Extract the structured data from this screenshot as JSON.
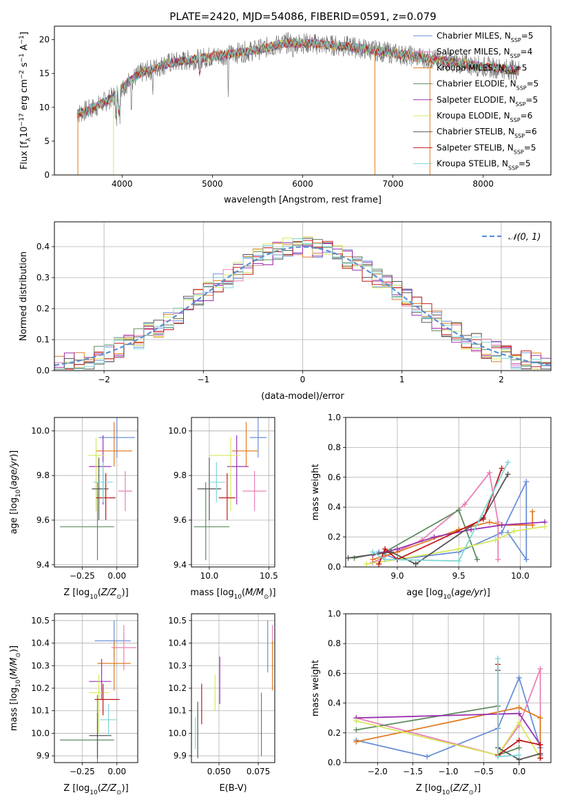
{
  "title": "PLATE=2420, MJD=54086, FIBERID=0591, z=0.079",
  "legend_series": [
    {
      "name": "Chabrier MILES",
      "nssp": "5",
      "color": "#6a8fd8"
    },
    {
      "name": "Salpeter MILES",
      "nssp": "4",
      "color": "#e87fb5"
    },
    {
      "name": "Kroupa MILES",
      "nssp": "5",
      "color": "#e07b20"
    },
    {
      "name": "Chabrier ELODIE",
      "nssp": "5",
      "color": "#5f8a5f"
    },
    {
      "name": "Salpeter ELODIE",
      "nssp": "5",
      "color": "#9b30b0"
    },
    {
      "name": "Kroupa ELODIE",
      "nssp": "6",
      "color": "#d6e85c"
    },
    {
      "name": "Chabrier STELIB",
      "nssp": "6",
      "color": "#555555"
    },
    {
      "name": "Salpeter STELIB",
      "nssp": "5",
      "color": "#c01818"
    },
    {
      "name": "Kroupa STELIB",
      "nssp": "5",
      "color": "#7fd6d6"
    }
  ],
  "chart_data": [
    {
      "id": "spectrum",
      "type": "line",
      "xlabel": "wavelength [Angstrom, rest frame]",
      "ylabel": "Flux [f_λ10^-17 erg cm^-2 s^-1 A^-1]",
      "xlim": [
        3250,
        8750
      ],
      "ylim": [
        0,
        22
      ],
      "xticks": [
        4000,
        5000,
        6000,
        7000,
        8000
      ],
      "yticks": [
        0,
        5,
        10,
        15,
        20
      ],
      "continuum": [
        [
          3500,
          9
        ],
        [
          3700,
          10
        ],
        [
          3900,
          11.5
        ],
        [
          4000,
          13
        ],
        [
          4200,
          15
        ],
        [
          4500,
          16.5
        ],
        [
          5000,
          17.5
        ],
        [
          5500,
          18.5
        ],
        [
          5800,
          19.5
        ],
        [
          6000,
          19.5
        ],
        [
          6500,
          19
        ],
        [
          7000,
          18
        ],
        [
          7500,
          17
        ],
        [
          8000,
          16
        ],
        [
          8400,
          15.5
        ]
      ],
      "data_range": [
        3500,
        8400
      ],
      "grid": false
    },
    {
      "id": "residuals",
      "type": "histogram",
      "xlabel": "(data-model)/error",
      "ylabel": "Normed distribution",
      "xlim": [
        -2.5,
        2.5
      ],
      "ylim": [
        0,
        0.48
      ],
      "xticks": [
        -2,
        -1,
        0,
        1,
        2
      ],
      "yticks": [
        0,
        0.1,
        0.2,
        0.3,
        0.4
      ],
      "bin_width": 0.1,
      "reference_curve": "N(0,1)",
      "reference_color": "#5b8fd6",
      "legend_position": "top-right",
      "grid": true
    },
    {
      "id": "age-vs-Z",
      "type": "errorbar",
      "xlabel": "Z [log10(Z/Z☉)]",
      "ylabel": "age  [log10(age/yr)]",
      "xlim": [
        -0.45,
        0.15
      ],
      "ylim": [
        9.39,
        10.06
      ],
      "xticks": [
        -0.25,
        0.0
      ],
      "yticks": [
        9.4,
        9.6,
        9.8,
        10.0
      ],
      "points": [
        {
          "x": 0.0,
          "xerr": [
            0.13,
            0.13
          ],
          "y": 9.97,
          "yerr": [
            0.09,
            0.09
          ],
          "color": "#6a8fd8"
        },
        {
          "x": 0.06,
          "xerr": [
            0.05,
            0.05
          ],
          "y": 9.73,
          "yerr": [
            0.09,
            0.09
          ],
          "color": "#e87fb5"
        },
        {
          "x": -0.02,
          "xerr": [
            0.13,
            0.13
          ],
          "y": 9.91,
          "yerr": [
            0.07,
            0.13
          ],
          "color": "#e07b20"
        },
        {
          "x": -0.14,
          "xerr": [
            0.27,
            0.12
          ],
          "y": 9.57,
          "yerr": [
            0.15,
            0.2
          ],
          "color": "#5f8a5f"
        },
        {
          "x": -0.1,
          "xerr": [
            0.1,
            0.06
          ],
          "y": 9.84,
          "yerr": [
            0.17,
            0.14
          ],
          "color": "#9b30b0"
        },
        {
          "x": -0.15,
          "xerr": [
            0.06,
            0.06
          ],
          "y": 9.89,
          "yerr": [
            0.25,
            0.08
          ],
          "color": "#d6e85c"
        },
        {
          "x": -0.13,
          "xerr": [
            0.05,
            0.07
          ],
          "y": 9.74,
          "yerr": [
            0.14,
            0.14
          ],
          "color": "#555555"
        },
        {
          "x": -0.08,
          "xerr": [
            0.07,
            0.07
          ],
          "y": 9.7,
          "yerr": [
            0.1,
            0.11
          ],
          "color": "#c01818"
        },
        {
          "x": -0.1,
          "xerr": [
            0.07,
            0.07
          ],
          "y": 9.77,
          "yerr": [
            0.09,
            0.09
          ],
          "color": "#7fd6d6"
        }
      ],
      "grid": true
    },
    {
      "id": "age-vs-mass",
      "type": "errorbar",
      "xlabel": "mass [log10(M/M☉)]",
      "ylabel": "",
      "xlim": [
        9.85,
        10.55
      ],
      "ylim": [
        9.39,
        10.06
      ],
      "xticks": [
        10.0,
        10.5
      ],
      "yticks": [
        9.4,
        9.6,
        9.8,
        10.0
      ],
      "points": [
        {
          "x": 10.41,
          "xerr": [
            0.07,
            0.07
          ],
          "y": 9.97,
          "yerr": [
            0.09,
            0.09
          ],
          "color": "#6a8fd8"
        },
        {
          "x": 10.38,
          "xerr": [
            0.1,
            0.1
          ],
          "y": 9.73,
          "yerr": [
            0.09,
            0.09
          ],
          "color": "#e87fb5"
        },
        {
          "x": 10.31,
          "xerr": [
            0.12,
            0.1
          ],
          "y": 9.91,
          "yerr": [
            0.07,
            0.13
          ],
          "color": "#e07b20"
        },
        {
          "x": 9.97,
          "xerr": [
            0.1,
            0.2
          ],
          "y": 9.57,
          "yerr": [
            0.15,
            0.2
          ],
          "color": "#5f8a5f"
        },
        {
          "x": 10.23,
          "xerr": [
            0.08,
            0.1
          ],
          "y": 9.84,
          "yerr": [
            0.17,
            0.14
          ],
          "color": "#9b30b0"
        },
        {
          "x": 10.18,
          "xerr": [
            0.18,
            0.08
          ],
          "y": 9.89,
          "yerr": [
            0.25,
            0.08
          ],
          "color": "#d6e85c"
        },
        {
          "x": 10.0,
          "xerr": [
            0.1,
            0.1
          ],
          "y": 9.74,
          "yerr": [
            0.14,
            0.14
          ],
          "color": "#555555"
        },
        {
          "x": 10.15,
          "xerr": [
            0.07,
            0.07
          ],
          "y": 9.7,
          "yerr": [
            0.1,
            0.11
          ],
          "color": "#c01818"
        },
        {
          "x": 10.06,
          "xerr": [
            0.07,
            0.07
          ],
          "y": 9.77,
          "yerr": [
            0.09,
            0.09
          ],
          "color": "#7fd6d6"
        }
      ],
      "grid": true
    },
    {
      "id": "weight-vs-age",
      "type": "line",
      "xlabel": "age  [log10(age/yr)]",
      "ylabel": "mass weight",
      "xlim": [
        8.58,
        10.25
      ],
      "ylim": [
        0,
        1.0
      ],
      "xticks": [
        9.0,
        9.5,
        10.0
      ],
      "yticks": [
        0,
        0.2,
        0.4,
        0.6,
        0.8,
        1.0
      ],
      "series": [
        {
          "color": "#6a8fd8",
          "x": [
            8.85,
            9.0,
            9.5,
            9.85,
            10.05,
            10.05,
            9.9
          ],
          "y": [
            0.1,
            0.05,
            0.1,
            0.23,
            0.57,
            0.05,
            0.23
          ]
        },
        {
          "color": "#e87fb5",
          "x": [
            8.8,
            9.2,
            9.55,
            9.75,
            9.82,
            9.82
          ],
          "y": [
            0.03,
            0.18,
            0.42,
            0.63,
            0.3,
            0.05
          ]
        },
        {
          "color": "#e07b20",
          "x": [
            8.8,
            9.0,
            9.5,
            9.75,
            9.85,
            10.1,
            10.1
          ],
          "y": [
            0.05,
            0.1,
            0.25,
            0.3,
            0.28,
            0.28,
            0.37
          ]
        },
        {
          "color": "#5f8a5f",
          "x": [
            8.65,
            8.9,
            9.5,
            9.65
          ],
          "y": [
            0.06,
            0.1,
            0.38,
            0.05
          ]
        },
        {
          "color": "#9b30b0",
          "x": [
            8.8,
            9.0,
            9.3,
            9.6,
            9.85,
            10.2
          ],
          "y": [
            0.08,
            0.12,
            0.2,
            0.25,
            0.28,
            0.3
          ]
        },
        {
          "color": "#d6e85c",
          "x": [
            8.75,
            9.0,
            9.5,
            9.8,
            9.95,
            10.2
          ],
          "y": [
            0.02,
            0.05,
            0.12,
            0.18,
            0.24,
            0.27
          ]
        },
        {
          "color": "#555555",
          "x": [
            8.6,
            8.95,
            9.15,
            9.7,
            9.9
          ],
          "y": [
            0.06,
            0.1,
            0.02,
            0.33,
            0.62
          ]
        },
        {
          "color": "#c01818",
          "x": [
            8.85,
            8.9,
            9.0,
            9.7,
            9.85
          ],
          "y": [
            0.02,
            0.12,
            0.05,
            0.32,
            0.66
          ]
        },
        {
          "color": "#7fd6d6",
          "x": [
            8.8,
            8.9,
            9.5,
            9.9
          ],
          "y": [
            0.1,
            0.05,
            0.04,
            0.7
          ]
        }
      ],
      "grid": true
    },
    {
      "id": "mass-vs-Z",
      "type": "errorbar",
      "xlabel": "Z [log10(Z/Z☉)]",
      "ylabel": "mass [log10(M/M☉)]",
      "xlim": [
        -0.45,
        0.15
      ],
      "ylim": [
        9.87,
        10.53
      ],
      "xticks": [
        -0.25,
        0.0
      ],
      "yticks": [
        9.9,
        10.0,
        10.1,
        10.2,
        10.3,
        10.4,
        10.5
      ],
      "points": [
        {
          "x": -0.02,
          "xerr": [
            0.14,
            0.12
          ],
          "y": 10.41,
          "yerr": [
            0.08,
            0.09
          ],
          "color": "#6a8fd8"
        },
        {
          "x": 0.05,
          "xerr": [
            0.09,
            0.09
          ],
          "y": 10.38,
          "yerr": [
            0.1,
            0.1
          ],
          "color": "#e87fb5"
        },
        {
          "x": -0.02,
          "xerr": [
            0.12,
            0.12
          ],
          "y": 10.31,
          "yerr": [
            0.12,
            0.1
          ],
          "color": "#e07b20"
        },
        {
          "x": -0.14,
          "xerr": [
            0.27,
            0.12
          ],
          "y": 9.97,
          "yerr": [
            0.1,
            0.2
          ],
          "color": "#5f8a5f"
        },
        {
          "x": -0.11,
          "xerr": [
            0.09,
            0.07
          ],
          "y": 10.23,
          "yerr": [
            0.08,
            0.1
          ],
          "color": "#9b30b0"
        },
        {
          "x": -0.13,
          "xerr": [
            0.07,
            0.07
          ],
          "y": 10.18,
          "yerr": [
            0.18,
            0.08
          ],
          "color": "#d6e85c"
        },
        {
          "x": -0.14,
          "xerr": [
            0.06,
            0.1
          ],
          "y": 9.99,
          "yerr": [
            0.1,
            0.1
          ],
          "color": "#555555"
        },
        {
          "x": -0.1,
          "xerr": [
            0.06,
            0.12
          ],
          "y": 10.15,
          "yerr": [
            0.07,
            0.07
          ],
          "color": "#c01818"
        },
        {
          "x": -0.06,
          "xerr": [
            0.06,
            0.06
          ],
          "y": 10.06,
          "yerr": [
            0.07,
            0.07
          ],
          "color": "#7fd6d6"
        }
      ],
      "grid": true
    },
    {
      "id": "mass-vs-EBV",
      "type": "errorbar",
      "xlabel": "E(B-V)",
      "ylabel": "",
      "xlim": [
        0.0325,
        0.0855
      ],
      "ylim": [
        9.87,
        10.53
      ],
      "xticks": [
        0.05,
        0.075
      ],
      "yticks": [
        9.9,
        10.0,
        10.1,
        10.2,
        10.3,
        10.4,
        10.5
      ],
      "points": [
        {
          "x": 0.081,
          "y": 10.38,
          "yerr": [
            0.11,
            0.12
          ],
          "color": "#6a8fd8"
        },
        {
          "x": 0.084,
          "y": 10.38,
          "yerr": [
            0.1,
            0.1
          ],
          "color": "#e87fb5"
        },
        {
          "x": 0.084,
          "y": 10.31,
          "yerr": [
            0.12,
            0.1
          ],
          "color": "#e07b20"
        },
        {
          "x": 0.077,
          "y": 10.0,
          "yerr": [
            0.1,
            0.18
          ],
          "color": "#5f8a5f"
        },
        {
          "x": 0.0505,
          "y": 10.23,
          "yerr": [
            0.1,
            0.11
          ],
          "color": "#9b30b0"
        },
        {
          "x": 0.0475,
          "y": 10.18,
          "yerr": [
            0.08,
            0.08
          ],
          "color": "#d6e85c"
        },
        {
          "x": 0.0365,
          "y": 10.04,
          "yerr": [
            0.15,
            0.1
          ],
          "color": "#555555"
        },
        {
          "x": 0.039,
          "y": 10.13,
          "yerr": [
            0.09,
            0.09
          ],
          "color": "#c01818"
        },
        {
          "x": 0.035,
          "y": 10.0,
          "yerr": [
            0.07,
            0.07
          ],
          "color": "#7fd6d6"
        }
      ],
      "grid": true
    },
    {
      "id": "weight-vs-Z",
      "type": "line",
      "xlabel": "Z [log10(Z/Z☉)]",
      "ylabel": "mass weight",
      "xlim": [
        -2.45,
        0.45
      ],
      "ylim": [
        0,
        1.0
      ],
      "xticks": [
        -2.0,
        -1.5,
        -1.0,
        -0.5,
        0.0
      ],
      "yticks": [
        0,
        0.2,
        0.4,
        0.6,
        0.8,
        1.0
      ],
      "series": [
        {
          "color": "#6a8fd8",
          "x": [
            -2.3,
            -1.3,
            -0.3,
            0.0,
            0.3,
            0.3
          ],
          "y": [
            0.15,
            0.04,
            0.23,
            0.57,
            0.1,
            0.05
          ]
        },
        {
          "color": "#e87fb5",
          "x": [
            -2.3,
            -0.3,
            0.0,
            0.3,
            0.3
          ],
          "y": [
            0.3,
            0.05,
            0.25,
            0.63,
            0.03
          ]
        },
        {
          "color": "#e07b20",
          "x": [
            -2.3,
            0.0,
            0.3,
            0.3
          ],
          "y": [
            0.14,
            0.37,
            0.3,
            0.03
          ]
        },
        {
          "color": "#5f8a5f",
          "x": [
            -2.3,
            -0.3,
            -0.3,
            0.0
          ],
          "y": [
            0.22,
            0.38,
            0.05,
            0.1
          ]
        },
        {
          "color": "#9b30b0",
          "x": [
            -2.3,
            0.0,
            0.3,
            0.3
          ],
          "y": [
            0.3,
            0.33,
            0.12,
            0.03
          ]
        },
        {
          "color": "#d6e85c",
          "x": [
            -2.3,
            -0.3,
            0.0,
            0.3
          ],
          "y": [
            0.28,
            0.05,
            0.27,
            0.03
          ]
        },
        {
          "color": "#555555",
          "x": [
            -0.3,
            -0.3,
            0.0,
            0.3
          ],
          "y": [
            0.62,
            0.1,
            0.02,
            0.06
          ]
        },
        {
          "color": "#c01818",
          "x": [
            -0.3,
            -0.3,
            0.0,
            0.3,
            0.3
          ],
          "y": [
            0.66,
            0.05,
            0.15,
            0.12,
            0.03
          ]
        },
        {
          "color": "#7fd6d6",
          "x": [
            -0.3,
            -0.3,
            0.0
          ],
          "y": [
            0.7,
            0.04,
            0.05
          ]
        }
      ],
      "grid": true
    }
  ]
}
